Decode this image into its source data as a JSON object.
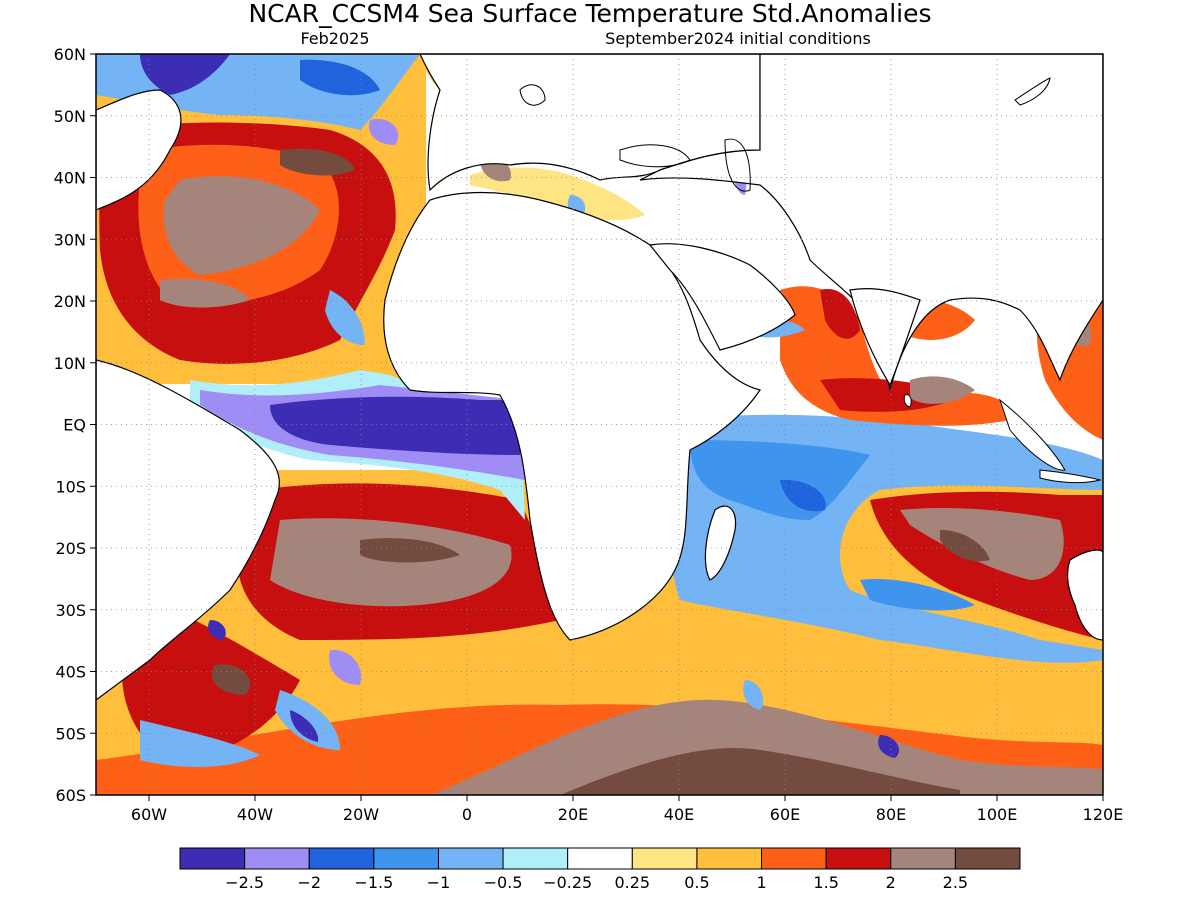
{
  "title": "NCAR_CCSM4 Sea Surface Temperature Std.Anomalies",
  "subtitle_left": "Feb2025",
  "subtitle_right": "September2024 initial conditions",
  "lat_labels": [
    "60N",
    "50N",
    "40N",
    "30N",
    "20N",
    "10N",
    "EQ",
    "10S",
    "20S",
    "30S",
    "40S",
    "50S",
    "60S"
  ],
  "lon_labels": [
    "60W",
    "40W",
    "20W",
    "0",
    "20E",
    "40E",
    "60E",
    "80E",
    "100E",
    "120E"
  ],
  "colorbar": {
    "colors": [
      "#3c2db4",
      "#9f8cf4",
      "#2063dd",
      "#3f94ee",
      "#74b4f5",
      "#b0eefa",
      "#ffffff",
      "#ffe484",
      "#ffbf3c",
      "#ff6018",
      "#c80f0f",
      "#a5847b",
      "#734c3f"
    ],
    "labels": [
      "−2.5",
      "−2",
      "−1.5",
      "−1",
      "−0.5",
      "−0.25",
      "0.25",
      "0.5",
      "1",
      "1.5",
      "2",
      "2.5"
    ]
  }
}
